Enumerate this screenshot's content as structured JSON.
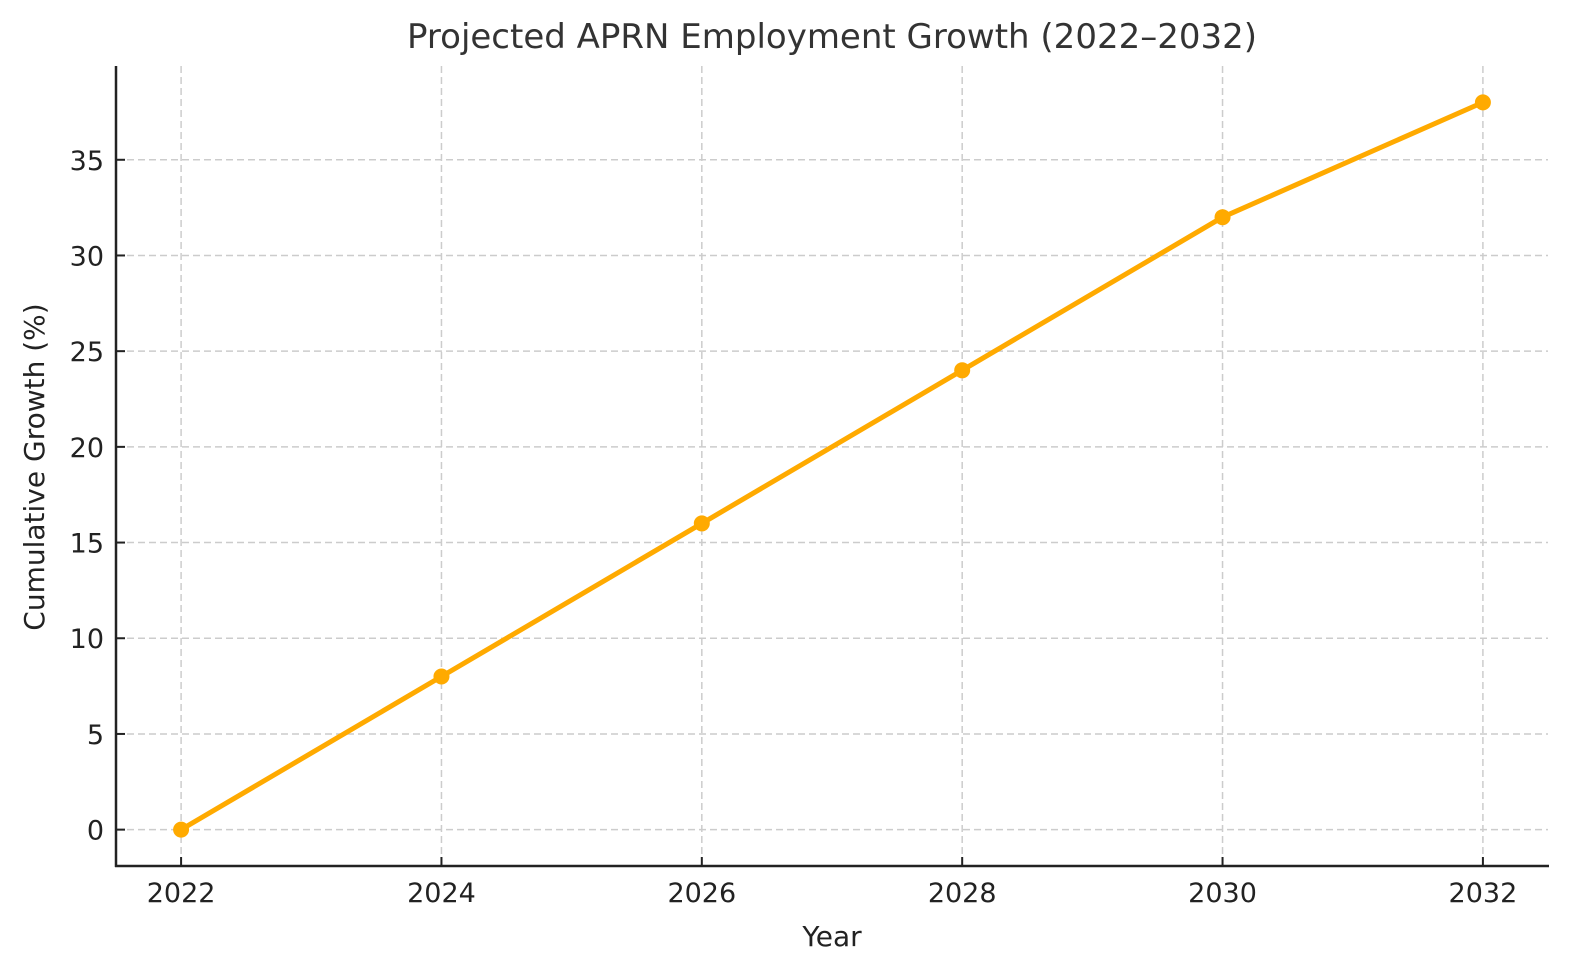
{
  "chart_data": {
    "type": "line",
    "title": "Projected APRN Employment Growth (2022–2032)",
    "xlabel": "Year",
    "ylabel": "Cumulative Growth (%)",
    "x": [
      2022,
      2024,
      2026,
      2028,
      2030,
      2032
    ],
    "series": [
      {
        "name": "Cumulative Growth (%)",
        "values": [
          0,
          8,
          16,
          24,
          32,
          38
        ],
        "color": "#FFAA00",
        "marker": "circle"
      }
    ],
    "xticks": [
      "2022",
      "2024",
      "2026",
      "2028",
      "2030",
      "2032"
    ],
    "yticks": [
      "0",
      "5",
      "10",
      "15",
      "20",
      "25",
      "30",
      "35"
    ],
    "xlim": [
      2021.5,
      2032.5
    ],
    "ylim": [
      -1.9,
      39.9
    ],
    "grid": true,
    "legend": "none"
  }
}
